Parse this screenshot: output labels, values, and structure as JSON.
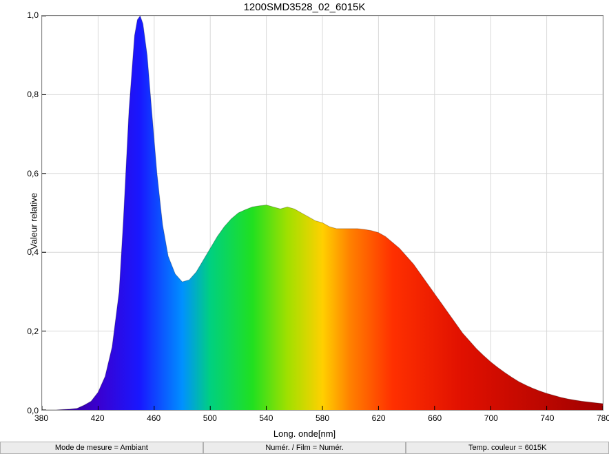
{
  "chart": {
    "type": "area",
    "title": "1200SMD3528_02_6015K",
    "xlabel": "Long. onde[nm]",
    "ylabel": "Valeur relative",
    "title_fontsize": 15,
    "label_fontsize": 13,
    "tick_fontsize": 12,
    "xlim": [
      380,
      780
    ],
    "ylim": [
      0.0,
      1.0
    ],
    "xtick_step": 40,
    "ytick_step": 0.2,
    "xticks": [
      "380",
      "420",
      "460",
      "500",
      "540",
      "580",
      "620",
      "660",
      "700",
      "740",
      "780"
    ],
    "yticks": [
      "0,0",
      "0,2",
      "0,4",
      "0,6",
      "0,8",
      "1,0"
    ],
    "background_color": "#ffffff",
    "grid_color": "#d8d8d8",
    "border_color": "#888888",
    "gradient_stops": [
      {
        "nm": 380,
        "color": "#2e006b"
      },
      {
        "nm": 420,
        "color": "#3a00d0"
      },
      {
        "nm": 450,
        "color": "#1818ff"
      },
      {
        "nm": 480,
        "color": "#0090ff"
      },
      {
        "nm": 500,
        "color": "#00d080"
      },
      {
        "nm": 530,
        "color": "#20e020"
      },
      {
        "nm": 555,
        "color": "#a0e000"
      },
      {
        "nm": 580,
        "color": "#ffd000"
      },
      {
        "nm": 600,
        "color": "#ff8000"
      },
      {
        "nm": 630,
        "color": "#ff3000"
      },
      {
        "nm": 680,
        "color": "#e01000"
      },
      {
        "nm": 780,
        "color": "#a00000"
      }
    ],
    "data": [
      {
        "x": 380,
        "y": 0.0
      },
      {
        "x": 385,
        "y": 0.0
      },
      {
        "x": 390,
        "y": 0.0
      },
      {
        "x": 395,
        "y": 0.001
      },
      {
        "x": 400,
        "y": 0.002
      },
      {
        "x": 405,
        "y": 0.004
      },
      {
        "x": 410,
        "y": 0.012
      },
      {
        "x": 415,
        "y": 0.022
      },
      {
        "x": 420,
        "y": 0.045
      },
      {
        "x": 425,
        "y": 0.085
      },
      {
        "x": 430,
        "y": 0.16
      },
      {
        "x": 435,
        "y": 0.3
      },
      {
        "x": 438,
        "y": 0.48
      },
      {
        "x": 442,
        "y": 0.76
      },
      {
        "x": 446,
        "y": 0.95
      },
      {
        "x": 448,
        "y": 0.99
      },
      {
        "x": 450,
        "y": 1.0
      },
      {
        "x": 452,
        "y": 0.98
      },
      {
        "x": 455,
        "y": 0.9
      },
      {
        "x": 458,
        "y": 0.77
      },
      {
        "x": 462,
        "y": 0.6
      },
      {
        "x": 466,
        "y": 0.47
      },
      {
        "x": 470,
        "y": 0.39
      },
      {
        "x": 475,
        "y": 0.345
      },
      {
        "x": 480,
        "y": 0.325
      },
      {
        "x": 485,
        "y": 0.33
      },
      {
        "x": 490,
        "y": 0.35
      },
      {
        "x": 495,
        "y": 0.38
      },
      {
        "x": 500,
        "y": 0.41
      },
      {
        "x": 505,
        "y": 0.44
      },
      {
        "x": 510,
        "y": 0.465
      },
      {
        "x": 515,
        "y": 0.485
      },
      {
        "x": 520,
        "y": 0.5
      },
      {
        "x": 525,
        "y": 0.508
      },
      {
        "x": 530,
        "y": 0.515
      },
      {
        "x": 535,
        "y": 0.518
      },
      {
        "x": 540,
        "y": 0.52
      },
      {
        "x": 545,
        "y": 0.515
      },
      {
        "x": 550,
        "y": 0.51
      },
      {
        "x": 555,
        "y": 0.515
      },
      {
        "x": 560,
        "y": 0.51
      },
      {
        "x": 565,
        "y": 0.5
      },
      {
        "x": 570,
        "y": 0.49
      },
      {
        "x": 575,
        "y": 0.48
      },
      {
        "x": 580,
        "y": 0.475
      },
      {
        "x": 585,
        "y": 0.465
      },
      {
        "x": 590,
        "y": 0.46
      },
      {
        "x": 595,
        "y": 0.46
      },
      {
        "x": 600,
        "y": 0.46
      },
      {
        "x": 605,
        "y": 0.46
      },
      {
        "x": 610,
        "y": 0.458
      },
      {
        "x": 615,
        "y": 0.455
      },
      {
        "x": 620,
        "y": 0.45
      },
      {
        "x": 625,
        "y": 0.44
      },
      {
        "x": 630,
        "y": 0.425
      },
      {
        "x": 635,
        "y": 0.41
      },
      {
        "x": 640,
        "y": 0.39
      },
      {
        "x": 645,
        "y": 0.37
      },
      {
        "x": 650,
        "y": 0.345
      },
      {
        "x": 655,
        "y": 0.32
      },
      {
        "x": 660,
        "y": 0.295
      },
      {
        "x": 665,
        "y": 0.27
      },
      {
        "x": 670,
        "y": 0.245
      },
      {
        "x": 675,
        "y": 0.22
      },
      {
        "x": 680,
        "y": 0.195
      },
      {
        "x": 685,
        "y": 0.175
      },
      {
        "x": 690,
        "y": 0.155
      },
      {
        "x": 695,
        "y": 0.138
      },
      {
        "x": 700,
        "y": 0.122
      },
      {
        "x": 705,
        "y": 0.108
      },
      {
        "x": 710,
        "y": 0.095
      },
      {
        "x": 715,
        "y": 0.083
      },
      {
        "x": 720,
        "y": 0.072
      },
      {
        "x": 725,
        "y": 0.063
      },
      {
        "x": 730,
        "y": 0.055
      },
      {
        "x": 735,
        "y": 0.048
      },
      {
        "x": 740,
        "y": 0.042
      },
      {
        "x": 745,
        "y": 0.037
      },
      {
        "x": 750,
        "y": 0.032
      },
      {
        "x": 755,
        "y": 0.028
      },
      {
        "x": 760,
        "y": 0.025
      },
      {
        "x": 765,
        "y": 0.022
      },
      {
        "x": 770,
        "y": 0.02
      },
      {
        "x": 775,
        "y": 0.018
      },
      {
        "x": 780,
        "y": 0.016
      }
    ]
  },
  "status": {
    "left": "Mode de mesure = Ambiant",
    "center": "Numér. / Film = Numér.",
    "right": "Temp. couleur = 6015K"
  }
}
